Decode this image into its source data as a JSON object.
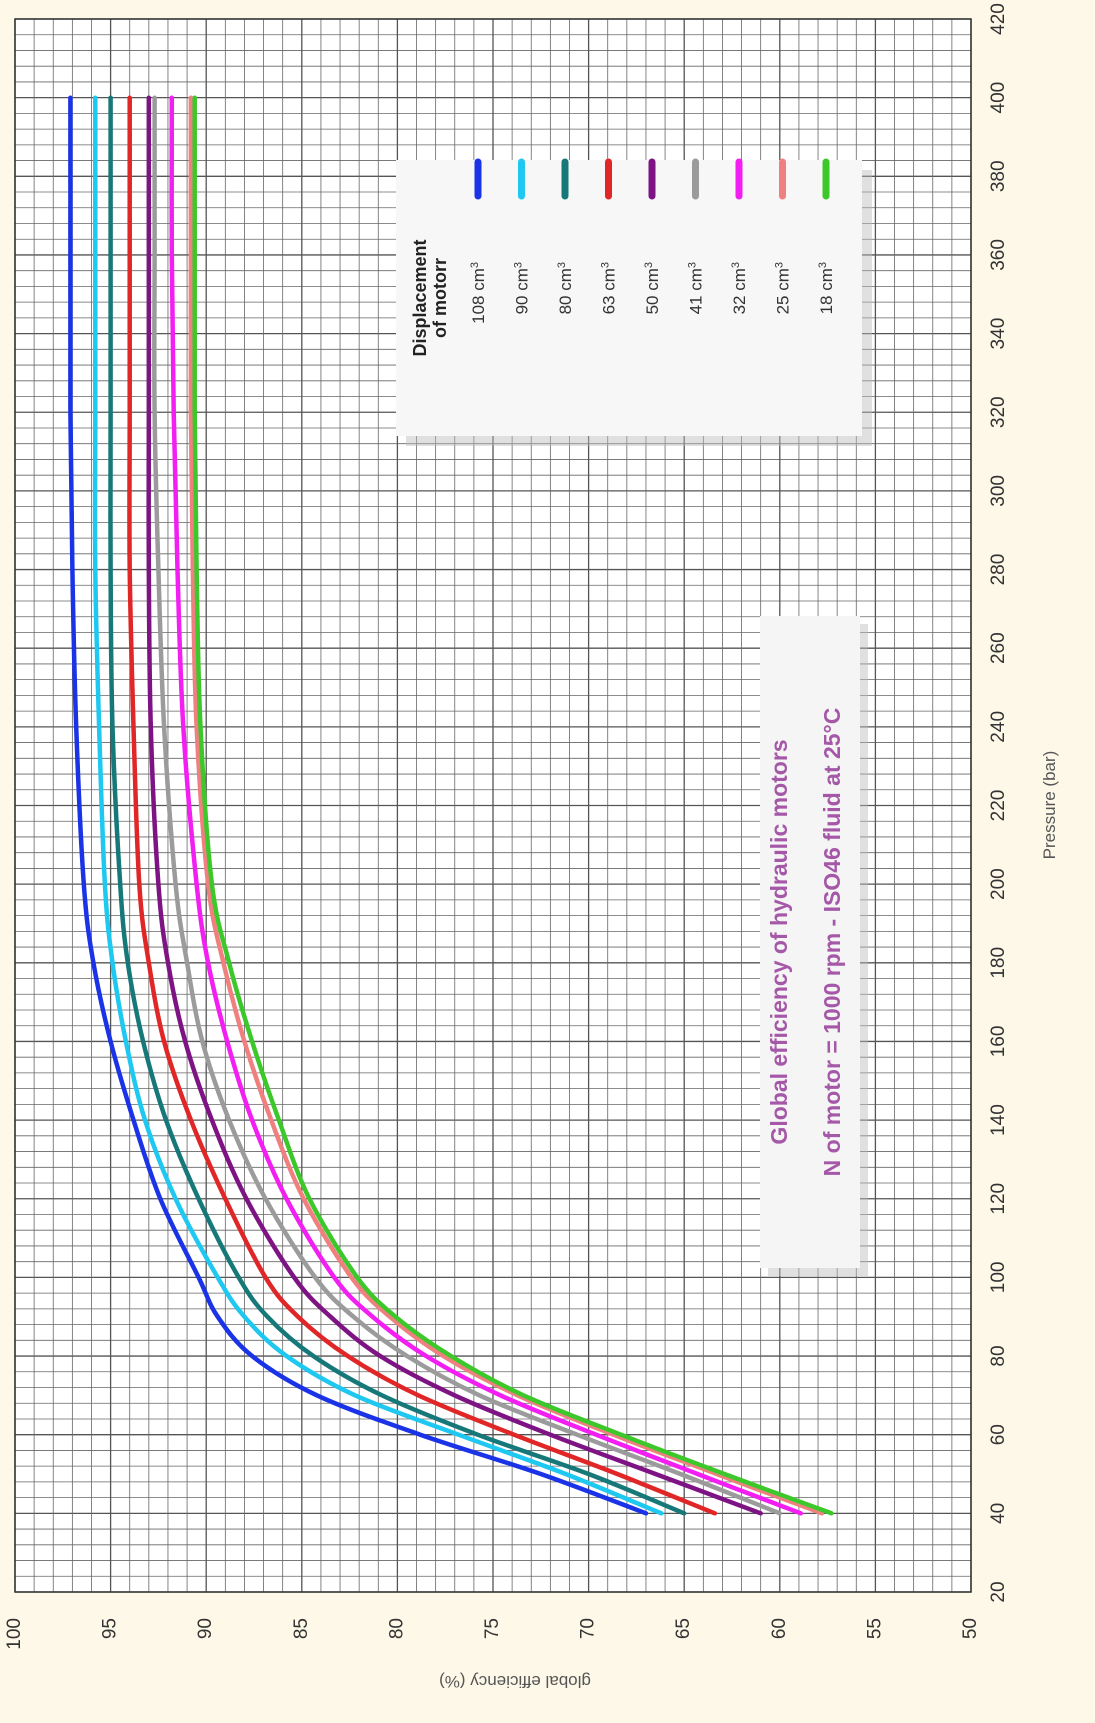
{
  "chart_data": {
    "type": "line",
    "title": "Global efficiency of hydraulic motors",
    "subtitle": "N of motor = 1000 rpm  -  ISO46 fluid at 25°C",
    "xlabel": "Pressure  (bar)",
    "ylabel": "global efficiency  (%)",
    "xlim": [
      20,
      420
    ],
    "ylim": [
      50,
      100
    ],
    "x_ticks": [
      "20",
      "40",
      "60",
      "80",
      "100",
      "120",
      "140",
      "160",
      "180",
      "200",
      "220",
      "240",
      "260",
      "280",
      "300",
      "320",
      "340",
      "360",
      "380",
      "400",
      "420"
    ],
    "y_ticks": [
      "100",
      "95",
      "90",
      "85",
      "80",
      "75",
      "70",
      "65",
      "60",
      "55",
      "50"
    ],
    "grid": true,
    "legend_title": "Displacement of motorr",
    "legend_title_lines": [
      "Displacement",
      "of motorr"
    ],
    "x": [
      40,
      50,
      60,
      70,
      80,
      90,
      100,
      120,
      140,
      160,
      180,
      200,
      240,
      280,
      320,
      360,
      400
    ],
    "series": [
      {
        "name": "108 cm³",
        "label_base": "108 cm",
        "color": "#1a33e6",
        "values": [
          67.0,
          72.5,
          78.8,
          84.2,
          87.6,
          89.4,
          90.4,
          92.4,
          93.8,
          95.0,
          95.9,
          96.4,
          96.8,
          97.0,
          97.1,
          97.1,
          97.1
        ]
      },
      {
        "name": "90 cm³",
        "label_base": "90 cm",
        "color": "#1ec8f0",
        "values": [
          66.2,
          71.2,
          76.8,
          82.2,
          85.8,
          88.0,
          89.4,
          91.6,
          93.2,
          94.2,
          94.9,
          95.3,
          95.6,
          95.8,
          95.8,
          95.8,
          95.8
        ]
      },
      {
        "name": "80 cm³",
        "label_base": "80 cm",
        "color": "#167878",
        "values": [
          65.0,
          70.0,
          75.8,
          80.8,
          84.4,
          86.8,
          88.3,
          90.4,
          92.1,
          93.3,
          94.1,
          94.5,
          94.9,
          95.0,
          95.0,
          95.0,
          95.0
        ]
      },
      {
        "name": "63 cm³",
        "label_base": "63 cm",
        "color": "#e02626",
        "values": [
          63.4,
          68.5,
          73.9,
          78.9,
          82.6,
          85.2,
          86.9,
          89.0,
          90.8,
          92.2,
          93.0,
          93.5,
          93.8,
          94.0,
          94.0,
          94.0,
          94.0
        ]
      },
      {
        "name": "50 cm³",
        "label_base": "50 cm",
        "color": "#7e1484",
        "values": [
          61.0,
          66.5,
          72.0,
          77.0,
          80.9,
          83.5,
          85.4,
          87.9,
          89.7,
          91.1,
          92.0,
          92.5,
          92.9,
          93.0,
          93.0,
          93.0,
          93.0
        ]
      },
      {
        "name": "41 cm³",
        "label_base": "41 cm",
        "color": "#9b9b9b",
        "values": [
          60.0,
          65.2,
          70.6,
          75.7,
          79.5,
          82.3,
          84.3,
          86.9,
          88.8,
          90.2,
          91.0,
          91.6,
          92.2,
          92.5,
          92.7,
          92.7,
          92.7
        ]
      },
      {
        "name": "32 cm³",
        "label_base": "32 cm",
        "color": "#f21ef2",
        "values": [
          58.9,
          64.3,
          69.6,
          74.6,
          78.5,
          81.3,
          83.3,
          85.8,
          87.6,
          88.9,
          89.9,
          90.5,
          91.2,
          91.5,
          91.7,
          91.8,
          91.8
        ]
      },
      {
        "name": "25 cm³",
        "label_base": "25 cm",
        "color": "#f08080",
        "values": [
          57.8,
          63.3,
          68.7,
          73.7,
          77.6,
          80.4,
          82.4,
          84.9,
          86.6,
          88.0,
          89.1,
          89.9,
          90.5,
          90.7,
          90.8,
          90.8,
          90.8
        ]
      },
      {
        "name": "18 cm³",
        "label_base": "18 cm",
        "color": "#3cc82a",
        "values": [
          57.3,
          62.9,
          68.3,
          73.4,
          77.2,
          80.1,
          82.1,
          84.6,
          86.2,
          87.6,
          88.8,
          89.7,
          90.3,
          90.5,
          90.6,
          90.6,
          90.6
        ]
      }
    ]
  }
}
